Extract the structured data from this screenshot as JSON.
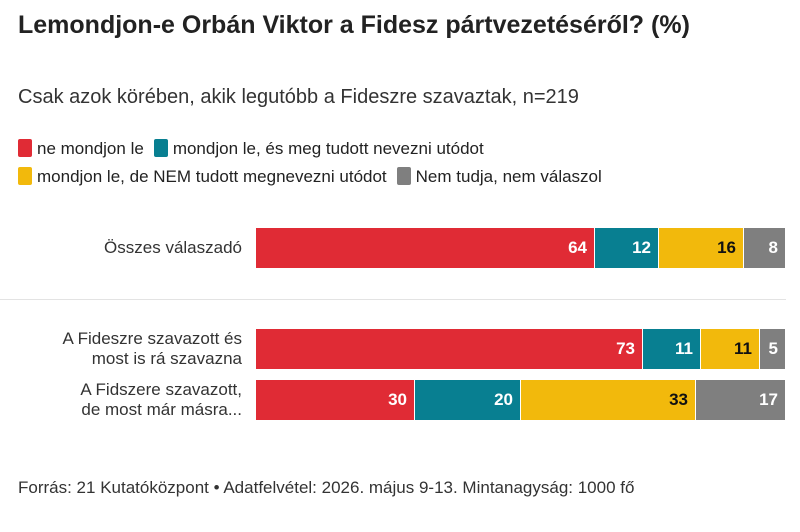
{
  "title": "Lemondjon-e Orbán Viktor a Fidesz pártvezetéséről? (%)",
  "subtitle": "Csak azok körében, akik legutóbb a Fideszre szavaztak, n=219",
  "source": "Forrás: 21 Kutatóközpont • Adatfelvétel: 2026. május 9-13. Mintanagyság: 1000 fő",
  "chart_data": {
    "type": "bar",
    "orientation": "horizontal-stacked-100",
    "xlim": [
      0,
      100
    ],
    "legend_position": "top",
    "categories": [
      [
        "Összes válaszadó"
      ],
      [
        "A Fideszre szavazott és",
        "most is rá szavazna"
      ],
      [
        "A Fidszere szavazott,",
        "de most már másra..."
      ]
    ],
    "series": [
      {
        "name": "ne mondjon le",
        "color": "#e02b35",
        "label_color": "#ffffff",
        "values": [
          64,
          73,
          30
        ]
      },
      {
        "name": "mondjon le, és meg tudott nevezni utódot",
        "color": "#087f91",
        "label_color": "#ffffff",
        "values": [
          12,
          11,
          20
        ]
      },
      {
        "name": "mondjon le, de NEM tudott megnevezni utódot",
        "color": "#f2b90c",
        "label_color": "#111111",
        "values": [
          16,
          11,
          33
        ]
      },
      {
        "name": "Nem tudja, nem válaszol",
        "color": "#7f7f7f",
        "label_color": "#ffffff",
        "values": [
          8,
          5,
          17
        ]
      }
    ]
  }
}
